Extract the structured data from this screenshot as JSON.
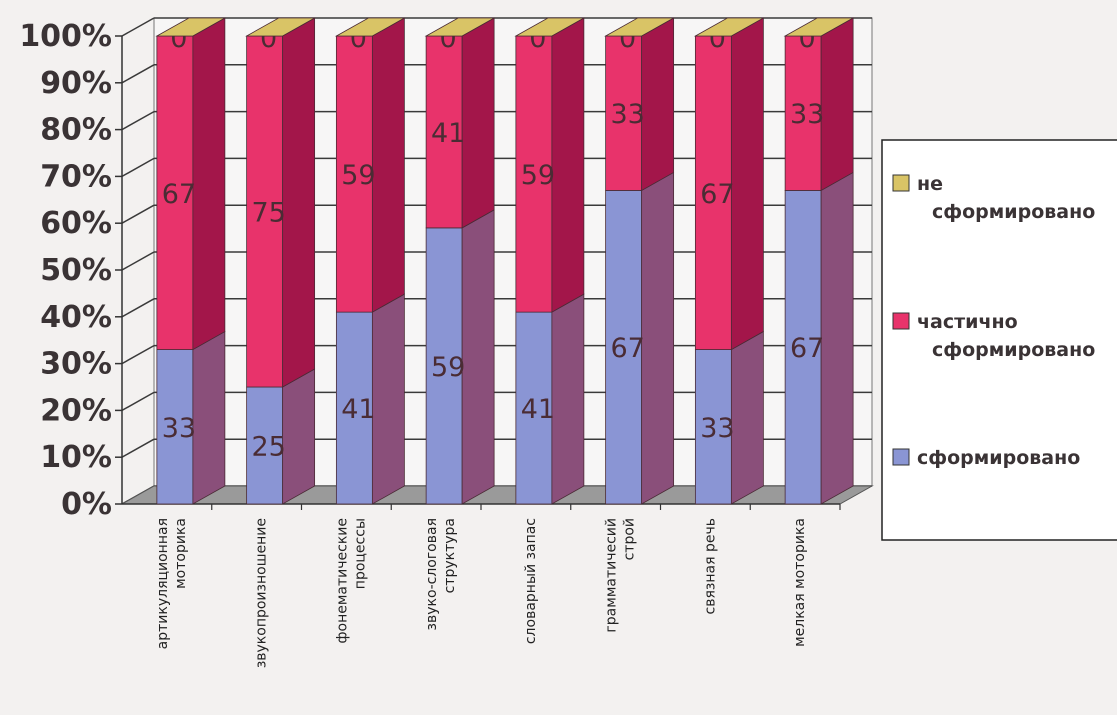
{
  "chart_data": {
    "type": "bar",
    "stacked": true,
    "percent": true,
    "three_d": true,
    "title": "",
    "xlabel": "",
    "ylabel": "",
    "ylim": [
      0,
      100
    ],
    "y_ticks": [
      "0%",
      "10%",
      "20%",
      "30%",
      "40%",
      "50%",
      "60%",
      "70%",
      "80%",
      "90%",
      "100%"
    ],
    "grid": true,
    "legend_position": "right",
    "categories": [
      [
        "артикуляционная",
        "моторика"
      ],
      [
        "звукопроизношение"
      ],
      [
        "фонематические",
        "процессы"
      ],
      [
        "звуко-слоговая",
        "структура"
      ],
      [
        "словарный запас"
      ],
      [
        "грамматичесий",
        "строй"
      ],
      [
        "связная речь"
      ],
      [
        "мелкая моторика"
      ]
    ],
    "series": [
      {
        "name": "сформировано",
        "values": [
          33,
          25,
          41,
          59,
          41,
          67,
          33,
          67
        ]
      },
      {
        "name": "частично сформировано",
        "values": [
          67,
          75,
          59,
          41,
          59,
          33,
          67,
          33
        ]
      },
      {
        "name": "не сформировано",
        "values": [
          0,
          0,
          0,
          0,
          0,
          0,
          0,
          0
        ]
      }
    ],
    "legend": [
      {
        "lines": [
          "не",
          "сформировано"
        ]
      },
      {
        "lines": [
          "частично",
          "сформировано"
        ]
      },
      {
        "lines": [
          "сформировано"
        ]
      }
    ],
    "colors": {
      "series_front": [
        "#8a95d4",
        "#e8336b",
        "#d9c466"
      ],
      "series_side": [
        "#8a4f7a",
        "#a3164a",
        "#b39a3d"
      ],
      "grid": "#3a3a3a",
      "floor": "#9a9a9a"
    }
  }
}
